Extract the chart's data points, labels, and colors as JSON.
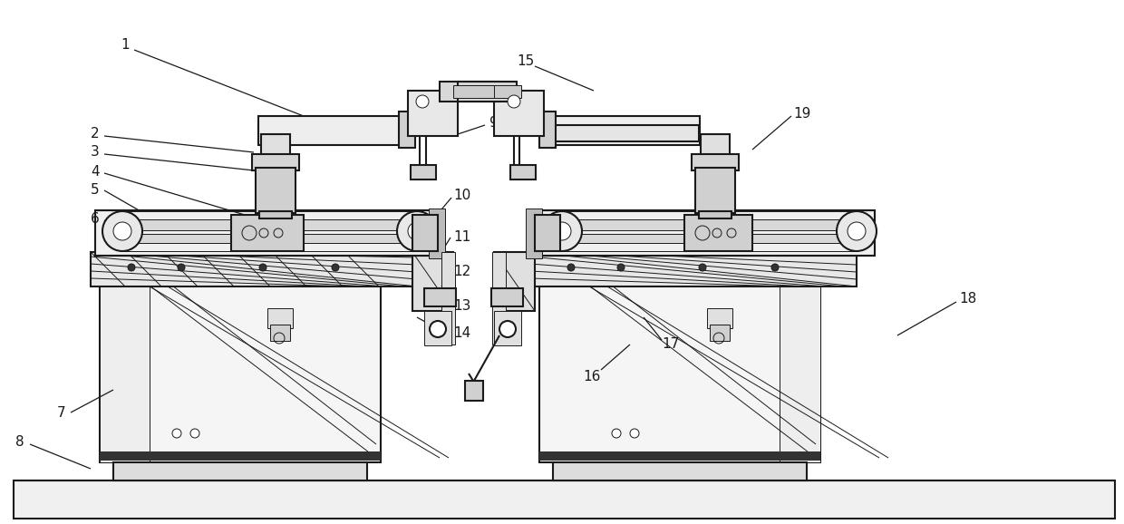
{
  "bg_color": "#ffffff",
  "lc": "#1a1a1a",
  "lw": 1.5,
  "tlw": 0.7,
  "figsize": [
    12.4,
    5.78
  ],
  "dpi": 100
}
